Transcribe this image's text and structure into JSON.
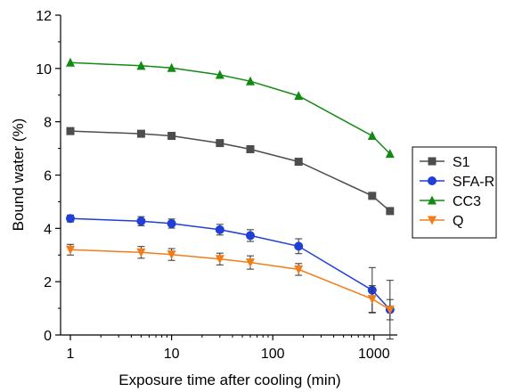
{
  "chart_data": {
    "type": "line",
    "title": "",
    "xlabel": "Exposure time after cooling (min)",
    "ylabel": "Bound water (%)",
    "x_scale": "log",
    "xlim": [
      0.8,
      1700
    ],
    "ylim": [
      0,
      12
    ],
    "x_ticks": [
      1,
      10,
      100,
      1000
    ],
    "x_tick_labels": [
      "1",
      "10",
      "100",
      "1000"
    ],
    "y_ticks": [
      0,
      2,
      4,
      6,
      8,
      10,
      12
    ],
    "y_tick_labels": [
      "0",
      "2",
      "4",
      "6",
      "8",
      "10",
      "12"
    ],
    "grid": false,
    "legend_position": "right",
    "x": [
      1,
      5,
      10,
      30,
      60,
      180,
      960,
      1440
    ],
    "series": [
      {
        "name": "S1",
        "color": "#4d4d4d",
        "marker": "square",
        "values": [
          7.65,
          7.55,
          7.47,
          7.2,
          6.97,
          6.5,
          5.22,
          4.65
        ],
        "errors": [
          0.05,
          0.05,
          0.05,
          0.05,
          0.05,
          0.05,
          0.05,
          0.05
        ]
      },
      {
        "name": "SFA-R",
        "color": "#1f3fd6",
        "marker": "circle",
        "values": [
          4.37,
          4.27,
          4.18,
          3.95,
          3.73,
          3.33,
          1.68,
          0.95
        ],
        "errors": [
          0.13,
          0.17,
          0.17,
          0.2,
          0.22,
          0.28,
          0.85,
          1.1
        ]
      },
      {
        "name": "CC3",
        "color": "#138a13",
        "marker": "triangle-up",
        "values": [
          10.22,
          10.1,
          10.02,
          9.76,
          9.52,
          8.97,
          7.47,
          6.8
        ],
        "errors": [
          0,
          0,
          0,
          0,
          0,
          0,
          0,
          0
        ]
      },
      {
        "name": "Q",
        "color": "#f07d1a",
        "marker": "triangle-down",
        "values": [
          3.2,
          3.1,
          3.02,
          2.85,
          2.72,
          2.46,
          1.35,
          0.95
        ],
        "errors": [
          0.2,
          0.22,
          0.22,
          0.22,
          0.25,
          0.22,
          0.5,
          0.38
        ]
      }
    ]
  }
}
